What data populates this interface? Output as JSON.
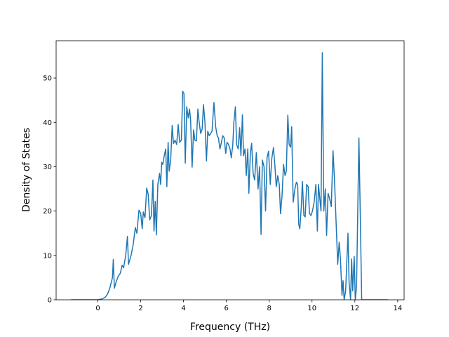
{
  "chart_data": {
    "type": "line",
    "x_label": "Frequency (THz)",
    "y_label": "Density of States",
    "xlim": [
      -1.95,
      14.3
    ],
    "ylim": [
      0,
      58.4
    ],
    "xticks": [
      0,
      2,
      4,
      6,
      8,
      10,
      12,
      14
    ],
    "yticks": [
      0,
      10,
      20,
      30,
      40,
      50
    ],
    "series": [
      {
        "color": "#1f77b4",
        "x": [
          -1.25,
          0,
          0.2,
          0.35,
          0.45,
          0.55,
          0.63,
          0.68,
          0.72,
          0.77,
          0.85,
          0.95,
          1.05,
          1.13,
          1.2,
          1.3,
          1.38,
          1.43,
          1.55,
          1.65,
          1.75,
          1.82,
          1.92,
          2.0,
          2.07,
          2.12,
          2.2,
          2.28,
          2.35,
          2.42,
          2.5,
          2.57,
          2.62,
          2.68,
          2.73,
          2.8,
          2.88,
          2.93,
          2.98,
          3.03,
          3.1,
          3.17,
          3.22,
          3.28,
          3.33,
          3.4,
          3.47,
          3.53,
          3.6,
          3.68,
          3.75,
          3.82,
          3.9,
          3.96,
          4.02,
          4.08,
          4.15,
          4.22,
          4.28,
          4.33,
          4.4,
          4.47,
          4.53,
          4.6,
          4.67,
          4.73,
          4.8,
          4.87,
          4.93,
          5.0,
          5.07,
          5.13,
          5.2,
          5.27,
          5.33,
          5.42,
          5.5,
          5.57,
          5.63,
          5.7,
          5.77,
          5.83,
          5.9,
          5.97,
          6.03,
          6.1,
          6.17,
          6.23,
          6.3,
          6.35,
          6.42,
          6.48,
          6.55,
          6.62,
          6.68,
          6.75,
          6.8,
          6.87,
          6.93,
          7.0,
          7.05,
          7.12,
          7.18,
          7.25,
          7.32,
          7.4,
          7.48,
          7.55,
          7.62,
          7.68,
          7.76,
          7.83,
          7.9,
          7.97,
          8.05,
          8.12,
          8.2,
          8.27,
          8.33,
          8.4,
          8.47,
          8.53,
          8.6,
          8.67,
          8.74,
          8.8,
          8.87,
          8.93,
          9.0,
          9.05,
          9.12,
          9.2,
          9.27,
          9.33,
          9.38,
          9.43,
          9.5,
          9.55,
          9.62,
          9.68,
          9.75,
          9.82,
          9.88,
          9.95,
          10.02,
          10.1,
          10.18,
          10.25,
          10.3,
          10.42,
          10.48,
          10.55,
          10.62,
          10.68,
          10.75,
          10.82,
          10.9,
          10.98,
          11.05,
          11.12,
          11.2,
          11.27,
          11.33,
          11.4,
          11.45,
          11.5,
          11.57,
          11.62,
          11.68,
          11.73,
          11.8,
          11.85,
          11.9,
          11.97,
          12.02,
          12.08,
          12.19,
          12.25,
          12.32,
          13.54
        ],
        "values": [
          0,
          0,
          0.2,
          0.6,
          1.3,
          2.5,
          4,
          5,
          9.1,
          2.6,
          4,
          5.3,
          6,
          7.8,
          7.2,
          10,
          14.3,
          8,
          10,
          12.5,
          16.3,
          15,
          20.2,
          19.5,
          16,
          19.8,
          18.5,
          25.2,
          23.8,
          18,
          19,
          27,
          15.5,
          22.2,
          14.6,
          26,
          28.5,
          26,
          31,
          30.5,
          32.5,
          34,
          25.5,
          35.5,
          29,
          31.5,
          39.3,
          35.2,
          36,
          35,
          39.5,
          35.5,
          36,
          47,
          46.5,
          30.8,
          43.5,
          41,
          43,
          40.5,
          29.9,
          38.3,
          36,
          35.8,
          43,
          40,
          37.5,
          38.5,
          44,
          40,
          31.3,
          38,
          37,
          37.5,
          38,
          44.5,
          39,
          37,
          36.5,
          34,
          35.5,
          37,
          36.5,
          33,
          35.5,
          35,
          34,
          32,
          35,
          40,
          43.5,
          35,
          34,
          38.8,
          32.5,
          41.7,
          32.5,
          34,
          28,
          34,
          24,
          33,
          35.3,
          28.5,
          27,
          33.2,
          25,
          30,
          14.7,
          31.5,
          30,
          20,
          32,
          33.5,
          26,
          31.8,
          34.3,
          30,
          25.5,
          28,
          26,
          19.4,
          23.5,
          30.5,
          28,
          29,
          41.6,
          35,
          34.4,
          39,
          22,
          25,
          26.5,
          26,
          17,
          16,
          21,
          26.7,
          19,
          18.7,
          26,
          25.5,
          19.5,
          19,
          20,
          22,
          26,
          15.5,
          26,
          20,
          55.7,
          20,
          25,
          14.5,
          24,
          22.8,
          21,
          33.6,
          27,
          18,
          8,
          13,
          9,
          1,
          4.3,
          0,
          2,
          8,
          15,
          4,
          0,
          9.2,
          2,
          9.8,
          0,
          3,
          36.5,
          20,
          0,
          0
        ]
      }
    ]
  }
}
